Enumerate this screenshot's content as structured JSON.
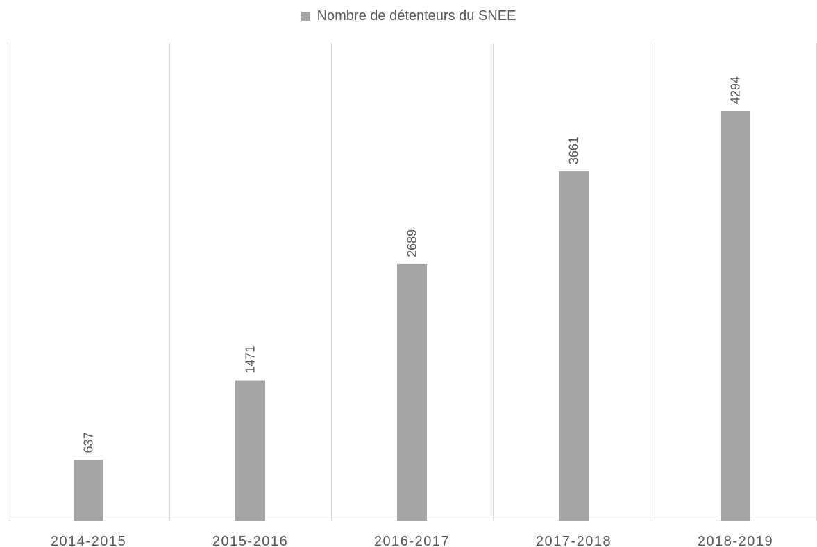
{
  "chart_data": {
    "type": "bar",
    "categories": [
      "2014-2015",
      "2015-2016",
      "2016-2017",
      "2017-2018",
      "2018-2019"
    ],
    "series": [
      {
        "name": "Nombre de détenteurs du SNEE",
        "values": [
          637,
          1471,
          2689,
          3661,
          4294
        ],
        "color": "#a5a5a5"
      }
    ],
    "title": "",
    "xlabel": "",
    "ylabel": "",
    "ylim": [
      0,
      5000
    ],
    "grid": "vertical",
    "legend": "top-center",
    "data_labels_rotated": true
  },
  "colors": {
    "bar": "#a5a5a5",
    "text": "#595959",
    "grid": "#d9d9d9",
    "axis": "#bfbfbf"
  }
}
